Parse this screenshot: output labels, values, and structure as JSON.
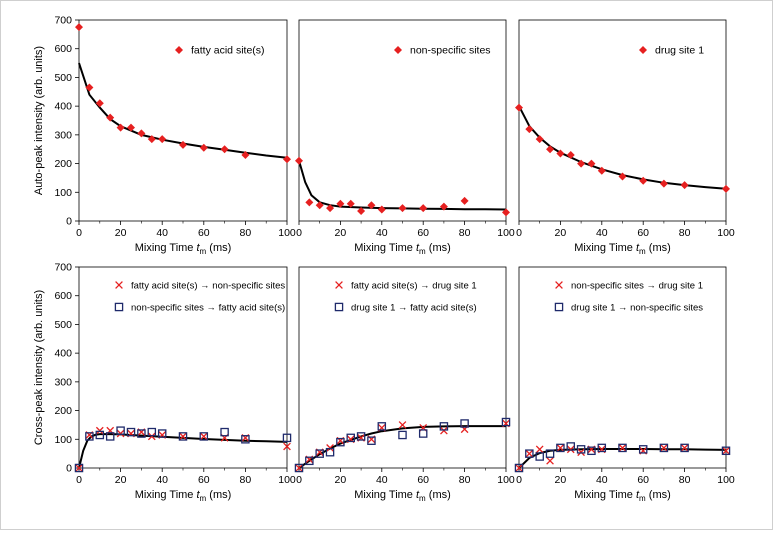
{
  "figure": {
    "colors": {
      "marker_red": "#e62020",
      "marker_navy": "#1f2a6b",
      "fit_line": "#000000",
      "axis": "#000000"
    }
  },
  "chart_data": [
    {
      "type": "scatter",
      "panel": "top-left",
      "ylabel": "Auto-peak intensity (arb. units)",
      "xlabel_prefix": "Mixing Time",
      "xlabel_var": "t",
      "xlabel_sub": "m",
      "xlabel_unit": "(ms)",
      "xlim": [
        0,
        100
      ],
      "ylim": [
        0,
        700
      ],
      "xticks": [
        "0",
        "20",
        "40",
        "60",
        "80",
        "100"
      ],
      "yticks": [
        "0",
        "100",
        "200",
        "300",
        "400",
        "500",
        "600",
        "700"
      ],
      "show_y_ticklabels": true,
      "legend_position": "top-right",
      "series": [
        {
          "name": "fatty acid site(s)",
          "marker": "diamond",
          "x": [
            0,
            5,
            10,
            15,
            20,
            25,
            30,
            35,
            40,
            50,
            60,
            70,
            80,
            100
          ],
          "y": [
            675,
            465,
            410,
            360,
            325,
            325,
            305,
            285,
            285,
            265,
            255,
            250,
            230,
            215
          ]
        }
      ],
      "fit": {
        "x": [
          0,
          5,
          10,
          15,
          20,
          30,
          40,
          50,
          60,
          70,
          80,
          90,
          100
        ],
        "y": [
          550,
          440,
          395,
          355,
          330,
          300,
          283,
          270,
          258,
          248,
          238,
          228,
          220
        ]
      }
    },
    {
      "type": "scatter",
      "panel": "top-middle",
      "xlabel_prefix": "Mixing Time",
      "xlabel_var": "t",
      "xlabel_sub": "m",
      "xlabel_unit": "(ms)",
      "xlim": [
        0,
        100
      ],
      "ylim": [
        0,
        700
      ],
      "xticks": [
        "0",
        "20",
        "40",
        "60",
        "80",
        "100"
      ],
      "yticks": [],
      "show_y_ticklabels": false,
      "legend_position": "top-right",
      "series": [
        {
          "name": "non-specific sites",
          "marker": "diamond",
          "x": [
            0,
            5,
            10,
            15,
            20,
            25,
            30,
            35,
            40,
            50,
            60,
            70,
            80,
            100
          ],
          "y": [
            210,
            65,
            55,
            45,
            60,
            60,
            35,
            55,
            40,
            45,
            45,
            50,
            70,
            30
          ]
        }
      ],
      "fit": {
        "x": [
          0,
          3,
          6,
          10,
          15,
          20,
          30,
          40,
          50,
          60,
          70,
          80,
          90,
          100
        ],
        "y": [
          210,
          135,
          90,
          65,
          55,
          50,
          47,
          45,
          44,
          43,
          42,
          41,
          41,
          40
        ]
      }
    },
    {
      "type": "scatter",
      "panel": "top-right",
      "xlabel_prefix": "Mixing Time",
      "xlabel_var": "t",
      "xlabel_sub": "m",
      "xlabel_unit": "(ms)",
      "xlim": [
        0,
        100
      ],
      "ylim": [
        0,
        700
      ],
      "xticks": [
        "0",
        "20",
        "40",
        "60",
        "80",
        "100"
      ],
      "yticks": [],
      "show_y_ticklabels": false,
      "legend_position": "top-right",
      "series": [
        {
          "name": "drug site 1",
          "marker": "diamond",
          "x": [
            0,
            5,
            10,
            15,
            20,
            25,
            30,
            35,
            40,
            50,
            60,
            70,
            80,
            100
          ],
          "y": [
            395,
            320,
            285,
            250,
            235,
            230,
            200,
            200,
            175,
            155,
            140,
            130,
            125,
            112
          ]
        }
      ],
      "fit": {
        "x": [
          0,
          5,
          10,
          15,
          20,
          30,
          40,
          50,
          60,
          70,
          80,
          90,
          100
        ],
        "y": [
          400,
          330,
          290,
          260,
          238,
          205,
          180,
          160,
          145,
          133,
          125,
          118,
          112
        ]
      }
    },
    {
      "type": "scatter",
      "panel": "bottom-left",
      "ylabel": "Cross-peak intensity (arb. units)",
      "xlabel_prefix": "Mixing Time",
      "xlabel_var": "t",
      "xlabel_sub": "m",
      "xlabel_unit": "(ms)",
      "xlim": [
        0,
        100
      ],
      "ylim": [
        0,
        700
      ],
      "xticks": [
        "0",
        "20",
        "40",
        "60",
        "80",
        "100"
      ],
      "yticks": [
        "0",
        "100",
        "200",
        "300",
        "400",
        "500",
        "600",
        "700"
      ],
      "show_y_ticklabels": true,
      "legend_position": "top-right",
      "series": [
        {
          "name": "fatty acid site(s) → non-specific sites",
          "marker": "x",
          "x": [
            0,
            5,
            10,
            15,
            20,
            25,
            30,
            35,
            40,
            50,
            60,
            70,
            80,
            100
          ],
          "y": [
            0,
            115,
            130,
            130,
            120,
            120,
            125,
            110,
            115,
            110,
            110,
            105,
            105,
            75
          ]
        },
        {
          "name": "non-specific sites → fatty acid site(s)",
          "marker": "square",
          "x": [
            0,
            5,
            10,
            15,
            20,
            25,
            30,
            35,
            40,
            50,
            60,
            70,
            80,
            100
          ],
          "y": [
            0,
            110,
            115,
            110,
            130,
            125,
            120,
            125,
            120,
            110,
            110,
            125,
            100,
            105
          ]
        }
      ],
      "fit": {
        "x": [
          0,
          2,
          4,
          6,
          8,
          10,
          15,
          20,
          30,
          40,
          50,
          60,
          70,
          80,
          90,
          100
        ],
        "y": [
          0,
          60,
          95,
          110,
          116,
          118,
          118,
          117,
          113,
          109,
          105,
          101,
          98,
          95,
          93,
          91
        ]
      }
    },
    {
      "type": "scatter",
      "panel": "bottom-middle",
      "xlabel_prefix": "Mixing Time",
      "xlabel_var": "t",
      "xlabel_sub": "m",
      "xlabel_unit": "(ms)",
      "xlim": [
        0,
        100
      ],
      "ylim": [
        0,
        700
      ],
      "xticks": [
        "0",
        "20",
        "40",
        "60",
        "80",
        "100"
      ],
      "yticks": [],
      "show_y_ticklabels": false,
      "legend_position": "top-right",
      "series": [
        {
          "name": "fatty acid site(s) → drug site 1",
          "marker": "x",
          "x": [
            0,
            5,
            10,
            15,
            20,
            25,
            30,
            35,
            40,
            50,
            60,
            70,
            80,
            100
          ],
          "y": [
            0,
            30,
            55,
            70,
            95,
            100,
            105,
            100,
            140,
            150,
            140,
            130,
            135,
            155
          ]
        },
        {
          "name": "drug site 1 → fatty acid site(s)",
          "marker": "square",
          "x": [
            0,
            5,
            10,
            15,
            20,
            25,
            30,
            35,
            40,
            50,
            60,
            70,
            80,
            100
          ],
          "y": [
            0,
            25,
            50,
            55,
            90,
            105,
            110,
            95,
            145,
            115,
            120,
            145,
            155,
            160
          ]
        }
      ],
      "fit": {
        "x": [
          0,
          5,
          10,
          15,
          20,
          25,
          30,
          35,
          40,
          50,
          60,
          70,
          80,
          90,
          100
        ],
        "y": [
          0,
          25,
          48,
          68,
          85,
          98,
          110,
          120,
          128,
          138,
          143,
          145,
          146,
          146,
          146
        ]
      }
    },
    {
      "type": "scatter",
      "panel": "bottom-right",
      "xlabel_prefix": "Mixing Time",
      "xlabel_var": "t",
      "xlabel_sub": "m",
      "xlabel_unit": "(ms)",
      "xlim": [
        0,
        100
      ],
      "ylim": [
        0,
        700
      ],
      "xticks": [
        "0",
        "20",
        "40",
        "60",
        "80",
        "100"
      ],
      "yticks": [],
      "show_y_ticklabels": false,
      "legend_position": "top-right",
      "series": [
        {
          "name": "non-specific sites → drug site 1",
          "marker": "x",
          "x": [
            0,
            5,
            10,
            15,
            20,
            25,
            30,
            35,
            40,
            50,
            60,
            70,
            80,
            100
          ],
          "y": [
            0,
            50,
            65,
            25,
            70,
            65,
            55,
            65,
            65,
            70,
            60,
            70,
            70,
            60
          ]
        },
        {
          "name": "drug site 1 → non-specific sites",
          "marker": "square",
          "x": [
            0,
            5,
            10,
            15,
            20,
            25,
            30,
            35,
            40,
            50,
            60,
            70,
            80,
            100
          ],
          "y": [
            0,
            50,
            40,
            50,
            70,
            75,
            65,
            60,
            70,
            70,
            65,
            70,
            70,
            60
          ]
        }
      ],
      "fit": {
        "x": [
          0,
          5,
          10,
          15,
          20,
          30,
          40,
          50,
          60,
          70,
          80,
          90,
          100
        ],
        "y": [
          0,
          35,
          52,
          60,
          63,
          65,
          66,
          66,
          66,
          65,
          65,
          64,
          63
        ]
      }
    }
  ]
}
